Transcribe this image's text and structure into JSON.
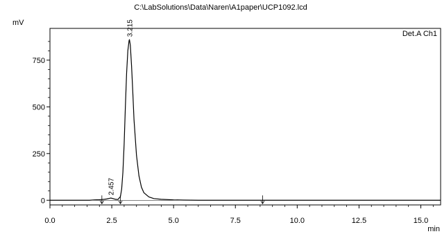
{
  "chart_data": {
    "type": "line",
    "title": "C:\\LabSolutions\\Data\\Naren\\A1paper\\UCP1092.lcd",
    "xlabel": "min",
    "ylabel": "mV",
    "xlim": [
      0,
      15.8
    ],
    "ylim": [
      -25,
      920
    ],
    "x_ticks": [
      0.0,
      2.5,
      5.0,
      7.5,
      10.0,
      12.5,
      15.0
    ],
    "x_tick_labels": [
      "0.0",
      "2.5",
      "5.0",
      "7.5",
      "10.0",
      "12.5",
      "15.0"
    ],
    "y_ticks": [
      0,
      250,
      500,
      750
    ],
    "y_tick_labels": [
      "0",
      "250",
      "500",
      "750"
    ],
    "grid": false,
    "legend": {
      "label": "Det.A Ch1",
      "placement": "top-right"
    },
    "series": [
      {
        "x": [
          0.0,
          1.0,
          1.6,
          1.8,
          2.0,
          2.1,
          2.2,
          2.3,
          2.4,
          2.457,
          2.55,
          2.65,
          2.75,
          2.85,
          2.9,
          2.95,
          3.0,
          3.05,
          3.1,
          3.15,
          3.2,
          3.215,
          3.25,
          3.3,
          3.35,
          3.4,
          3.5,
          3.6,
          3.7,
          3.8,
          4.0,
          4.2,
          4.5,
          5.0,
          5.4,
          6.0,
          8.0,
          10.0,
          12.0,
          14.0,
          15.8
        ],
        "y": [
          0,
          0,
          0,
          2,
          3,
          4,
          5,
          7,
          10,
          12,
          9,
          5,
          4,
          20,
          60,
          150,
          300,
          500,
          680,
          800,
          855,
          860,
          830,
          720,
          580,
          430,
          240,
          130,
          70,
          40,
          18,
          9,
          5,
          2,
          1,
          0,
          0,
          0,
          0,
          0,
          0
        ]
      }
    ],
    "annotations": [
      {
        "x": 2.457,
        "y": 12,
        "label": "2.457"
      },
      {
        "x": 3.215,
        "y": 860,
        "label": "3.215"
      }
    ],
    "markers": [
      2.1,
      2.85,
      8.6
    ]
  }
}
